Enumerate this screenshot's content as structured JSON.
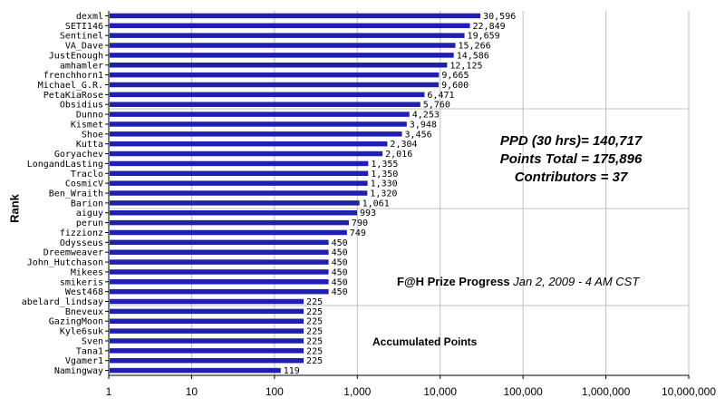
{
  "chart_data": {
    "type": "bar",
    "orientation": "horizontal",
    "title": "",
    "xlabel": "",
    "ylabel": "Rank",
    "x_scale": "log",
    "xlim": [
      1,
      10000000
    ],
    "x_ticks": [
      "1",
      "10",
      "100",
      "1,000",
      "10,000",
      "100,000",
      "1,000,000",
      "10,000,000"
    ],
    "grid": "vertical gridlines",
    "legend": "none",
    "bar_color": "#1f1fb0",
    "categories": [
      "dexml",
      "SETI146",
      "Sentinel",
      "VA_Dave",
      "JustEnough",
      "amhamler",
      "frenchhorn1",
      "Michael_G.R.",
      "PetaKiaRose",
      "Obsidius",
      "Dunno",
      "Kismet",
      "Shoe",
      "Kutta",
      "Goryachev",
      "LongandLasting",
      "Traclo",
      "CosmicV",
      "Ben_Wraith",
      "Barion",
      "aiguy",
      "perun",
      "fizzionz",
      "Odysseus",
      "Dreemweaver",
      "John_Hutchason",
      "Mikees",
      "smikeris",
      "West468",
      "abelard_lindsay",
      "Bneveux",
      "GazingMoon",
      "Kyle6suk",
      "Sven",
      "Tana1",
      "Vgamer1",
      "Namingway"
    ],
    "values": [
      30596,
      22849,
      19659,
      15266,
      14586,
      12125,
      9665,
      9600,
      6471,
      5760,
      4253,
      3948,
      3456,
      2304,
      2016,
      1355,
      1350,
      1330,
      1320,
      1061,
      993,
      790,
      749,
      450,
      450,
      450,
      450,
      450,
      450,
      225,
      225,
      225,
      225,
      225,
      225,
      225,
      119
    ],
    "value_labels": [
      "30,596",
      "22,849",
      "19,659",
      "15,266",
      "14,586",
      "12,125",
      "9,665",
      "9,600",
      "6,471",
      "5,760",
      "4,253",
      "3,948",
      "3,456",
      "2,304",
      "2,016",
      "1,355",
      "1,350",
      "1,330",
      "1,320",
      "1,061",
      "993",
      "790",
      "749",
      "450",
      "450",
      "450",
      "450",
      "450",
      "450",
      "225",
      "225",
      "225",
      "225",
      "225",
      "225",
      "225",
      "119"
    ]
  },
  "annotations": {
    "ppd": "PPD (30 hrs)= 140,717",
    "points_total": "Points Total = 175,896",
    "contributors": "Contributors = 37",
    "prize_bold": "F@H Prize Progress",
    "prize_date": "Jan 2, 2009 - 4 AM CST",
    "accumulated": "Accumulated Points"
  }
}
